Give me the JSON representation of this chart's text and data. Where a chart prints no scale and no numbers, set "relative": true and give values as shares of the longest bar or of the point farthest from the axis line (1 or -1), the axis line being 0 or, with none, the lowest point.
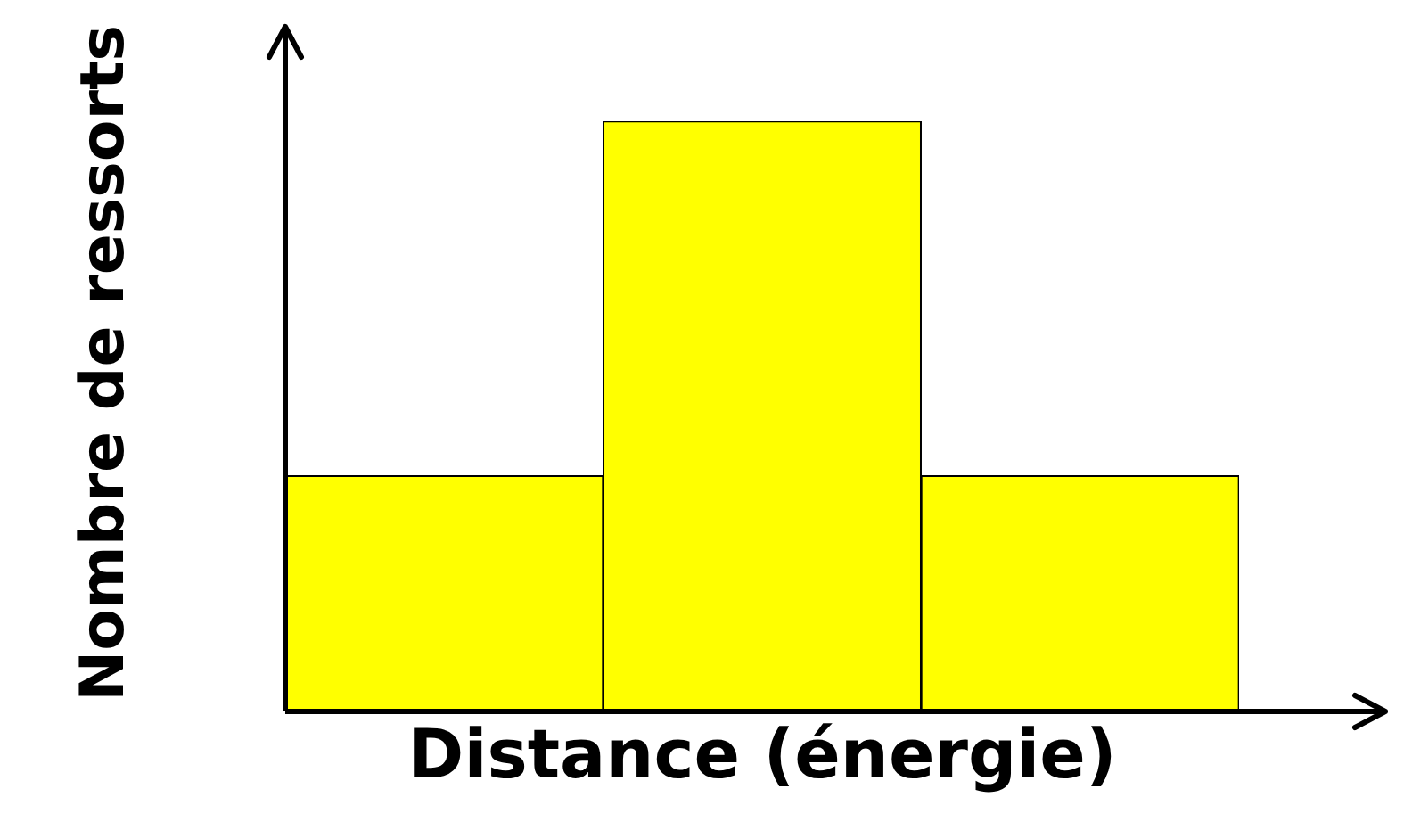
{
  "chart_data": {
    "type": "bar",
    "relative": true,
    "categories": [
      null,
      null,
      null
    ],
    "values": [
      0.4,
      1,
      0.4
    ],
    "color": "#ffff00",
    "xlabel": "Distance (énergie)",
    "ylabel": "Nombre de ressorts",
    "grid": false,
    "legend": false
  }
}
